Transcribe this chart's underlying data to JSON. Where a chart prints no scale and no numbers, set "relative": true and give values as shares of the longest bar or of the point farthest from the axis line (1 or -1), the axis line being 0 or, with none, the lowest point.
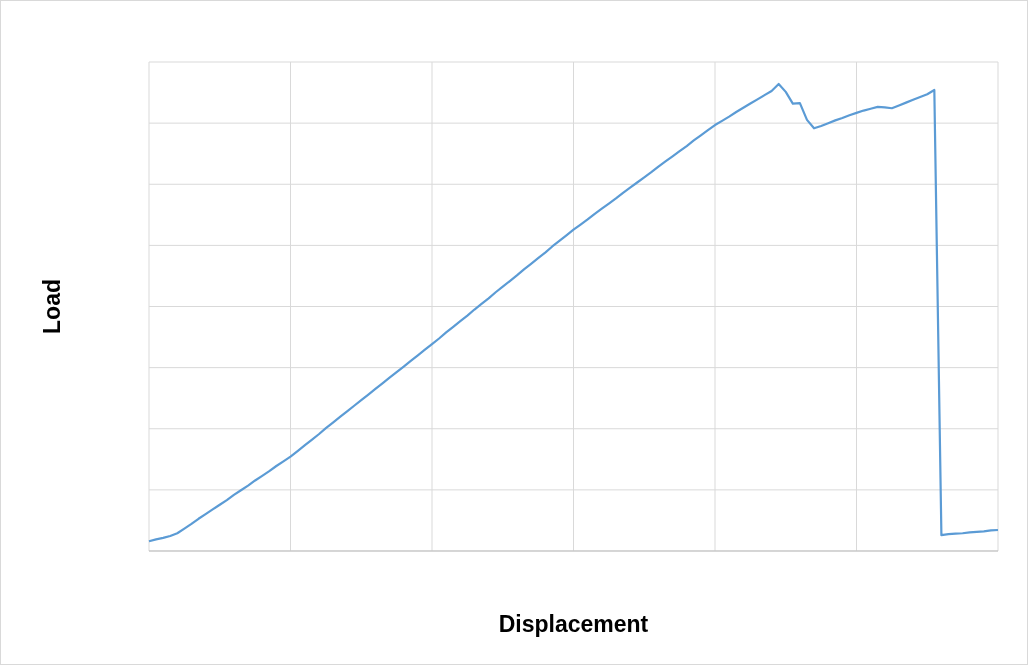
{
  "chart_data": {
    "type": "line",
    "xlabel": "Displacement",
    "ylabel": "Load",
    "relative": true,
    "grid": true,
    "legend": false,
    "marker": "none",
    "line_style": "solid",
    "categories": [
      null,
      null,
      null,
      null,
      null,
      null,
      null,
      null,
      null,
      null,
      null,
      null,
      null,
      null,
      null,
      null,
      null,
      null,
      null,
      null,
      null,
      null,
      null,
      null,
      null,
      null,
      null,
      null,
      null,
      null,
      null,
      null,
      null,
      null,
      null,
      null,
      null,
      null,
      null,
      null,
      null,
      null,
      null,
      null,
      null,
      null,
      null,
      null,
      null,
      null,
      null,
      null,
      null,
      null,
      null,
      null,
      null,
      null,
      null,
      null,
      null,
      null,
      null,
      null,
      null,
      null,
      null,
      null,
      null,
      null,
      null,
      null,
      null,
      null,
      null,
      null,
      null,
      null,
      null,
      null,
      null,
      null,
      null,
      null,
      null,
      null,
      null,
      null,
      null,
      null,
      null,
      null,
      null,
      null,
      null,
      null,
      null,
      null,
      null,
      null,
      null,
      null,
      null,
      null,
      null,
      null,
      null,
      null,
      null,
      null,
      null,
      null,
      null,
      null,
      null,
      null,
      null,
      null,
      null,
      null,
      null
    ],
    "series": [
      {
        "color": "#5b9bd5",
        "values": [
          0.021,
          0.025,
          0.028,
          0.032,
          0.038,
          0.048,
          0.058,
          0.069,
          0.079,
          0.089,
          0.099,
          0.109,
          0.12,
          0.13,
          0.14,
          0.151,
          0.161,
          0.171,
          0.182,
          0.192,
          0.202,
          0.214,
          0.226,
          0.238,
          0.25,
          0.263,
          0.275,
          0.287,
          0.299,
          0.311,
          0.323,
          0.335,
          0.347,
          0.359,
          0.371,
          0.383,
          0.395,
          0.407,
          0.419,
          0.431,
          0.443,
          0.455,
          0.468,
          0.48,
          0.492,
          0.504,
          0.517,
          0.529,
          0.541,
          0.554,
          0.566,
          0.578,
          0.59,
          0.603,
          0.615,
          0.627,
          0.639,
          0.652,
          0.664,
          0.676,
          0.688,
          0.699,
          0.71,
          0.722,
          0.733,
          0.744,
          0.755,
          0.767,
          0.778,
          0.789,
          0.8,
          0.811,
          0.823,
          0.834,
          0.845,
          0.856,
          0.867,
          0.879,
          0.89,
          0.901,
          0.912,
          0.921,
          0.93,
          0.94,
          0.949,
          0.958,
          0.967,
          0.976,
          0.985,
          1,
          0.983,
          0.958,
          0.959,
          0.923,
          0.905,
          0.91,
          0.916,
          0.922,
          0.927,
          0.933,
          0.938,
          0.943,
          0.947,
          0.951,
          0.95,
          0.948,
          0.954,
          0.96,
          0.966,
          0.972,
          0.978,
          0.987,
          0.034,
          0.036,
          0.037,
          0.038,
          0.04,
          0.041,
          0.042,
          0.044,
          0.045
        ]
      }
    ]
  }
}
